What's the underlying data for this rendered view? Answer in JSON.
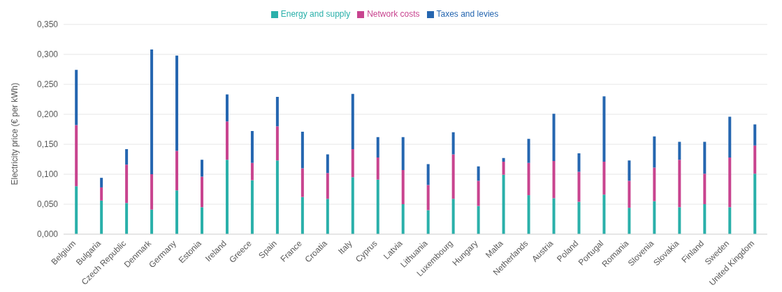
{
  "chart_data": {
    "type": "bar",
    "stacked": true,
    "ylabel": "Electricity price (€ per kWh)",
    "categories": [
      "Belgium",
      "Bulgaria",
      "Czech Republic",
      "Denmark",
      "Germany",
      "Estonia",
      "Ireland",
      "Greece",
      "Spain",
      "France",
      "Croatia",
      "Italy",
      "Cyprus",
      "Latvia",
      "Lithuania",
      "Luxembourg",
      "Hungary",
      "Malta",
      "Netherlands",
      "Austria",
      "Poland",
      "Portugal",
      "Romania",
      "Slovenia",
      "Slovakia",
      "Finland",
      "Sweden",
      "United Kingdom"
    ],
    "series": [
      {
        "name": "Energy and supply",
        "color": "#2ab0aa",
        "values": [
          0.08,
          0.056,
          0.052,
          0.041,
          0.073,
          0.045,
          0.124,
          0.09,
          0.123,
          0.062,
          0.059,
          0.095,
          0.091,
          0.05,
          0.04,
          0.059,
          0.047,
          0.099,
          0.065,
          0.06,
          0.054,
          0.066,
          0.044,
          0.055,
          0.045,
          0.05,
          0.045,
          0.101
        ]
      },
      {
        "name": "Network costs",
        "color": "#c8448f",
        "values": [
          0.102,
          0.022,
          0.064,
          0.059,
          0.066,
          0.051,
          0.064,
          0.029,
          0.057,
          0.048,
          0.043,
          0.047,
          0.037,
          0.057,
          0.042,
          0.074,
          0.042,
          0.022,
          0.054,
          0.062,
          0.05,
          0.055,
          0.045,
          0.056,
          0.079,
          0.051,
          0.083,
          0.047
        ]
      },
      {
        "name": "Taxes and levies",
        "color": "#2566b0",
        "values": [
          0.092,
          0.016,
          0.026,
          0.208,
          0.159,
          0.028,
          0.045,
          0.053,
          0.049,
          0.061,
          0.031,
          0.092,
          0.034,
          0.055,
          0.035,
          0.037,
          0.024,
          0.006,
          0.04,
          0.079,
          0.031,
          0.109,
          0.034,
          0.052,
          0.03,
          0.053,
          0.068,
          0.035
        ]
      }
    ],
    "ylim": [
      0,
      0.35
    ],
    "yticks": [
      {
        "value": 0,
        "label": "0,000"
      },
      {
        "value": 0.05,
        "label": "0,050"
      },
      {
        "value": 0.1,
        "label": "0,100"
      },
      {
        "value": 0.15,
        "label": "0,150"
      },
      {
        "value": 0.2,
        "label": "0,200"
      },
      {
        "value": 0.25,
        "label": "0,250"
      },
      {
        "value": 0.3,
        "label": "0,300"
      },
      {
        "value": 0.35,
        "label": "0,350"
      }
    ],
    "grid": "y",
    "legend": "top"
  }
}
